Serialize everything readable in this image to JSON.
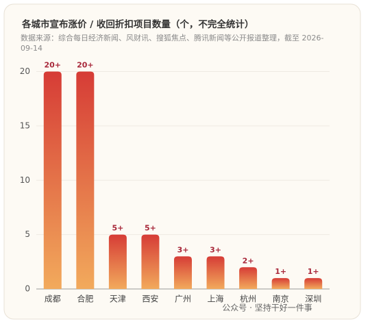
{
  "chart_data": {
    "type": "bar",
    "title": "各城市宣布涨价 / 收回折扣项目数量（个，不完全统计）",
    "subtitle": "数据来源：综合每日经济新闻、风财讯、搜狐焦点、腾讯新闻等公开报道整理，截至 2026-09-14",
    "categories": [
      "成都",
      "合肥",
      "天津",
      "西安",
      "广州",
      "上海",
      "杭州",
      "南京",
      "深圳"
    ],
    "values": [
      20,
      20,
      5,
      5,
      3,
      3,
      2,
      1,
      1
    ],
    "value_labels": [
      "20+",
      "20+",
      "5+",
      "5+",
      "3+",
      "3+",
      "2+",
      "1+",
      "1+"
    ],
    "colors": [
      "#d63c36",
      "#f2aa5c"
    ],
    "ylim": [
      0,
      20.6
    ],
    "yticks": [
      0,
      5,
      10,
      15,
      20
    ],
    "grid": true,
    "watermark": "公众号 · 坚持干好一件事"
  }
}
